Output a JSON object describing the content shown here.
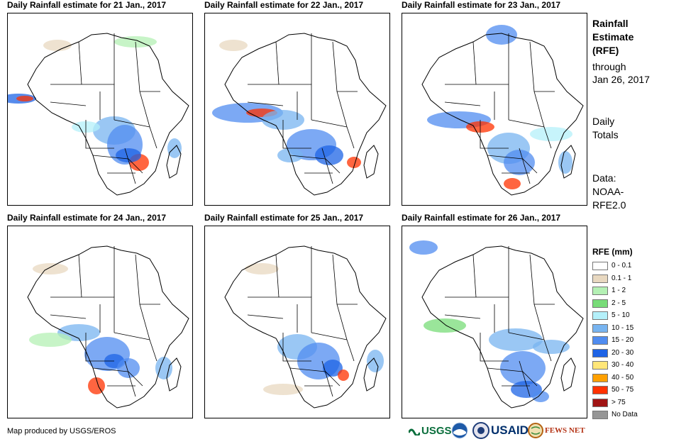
{
  "panels": [
    {
      "title": "Daily Rainfall estimate for 21 Jan., 2017"
    },
    {
      "title": "Daily Rainfall estimate for 22 Jan., 2017"
    },
    {
      "title": "Daily Rainfall estimate for 23 Jan., 2017"
    },
    {
      "title": "Daily Rainfall estimate for 24 Jan., 2017"
    },
    {
      "title": "Daily Rainfall estimate for 25 Jan., 2017"
    },
    {
      "title": "Daily Rainfall estimate for 26 Jan., 2017"
    }
  ],
  "side": {
    "title_line1": "Rainfall",
    "title_line2": "Estimate",
    "title_line3": "(RFE)",
    "through": "through",
    "date": "Jan 26, 2017",
    "daily_line1": "Daily",
    "daily_line2": "Totals",
    "data_line1": "Data:",
    "data_line2": "NOAA-",
    "data_line3": "RFE2.0"
  },
  "legend": {
    "title": "RFE (mm)",
    "items": [
      {
        "label": "0 - 0.1",
        "color": "#ffffff"
      },
      {
        "label": "0.1 - 1",
        "color": "#e8d8c0"
      },
      {
        "label": "1 - 2",
        "color": "#b4f0b4"
      },
      {
        "label": "2 - 5",
        "color": "#78dc78"
      },
      {
        "label": "5 - 10",
        "color": "#b4f0fa"
      },
      {
        "label": "10 - 15",
        "color": "#78b4f0"
      },
      {
        "label": "15 - 20",
        "color": "#508cf0"
      },
      {
        "label": "20 - 30",
        "color": "#1e64e6"
      },
      {
        "label": "30 - 40",
        "color": "#ffe678"
      },
      {
        "label": "40 - 50",
        "color": "#ffa000"
      },
      {
        "label": "50 - 75",
        "color": "#ff3200"
      },
      {
        "label": "> 75",
        "color": "#a01414"
      },
      {
        "label": "No Data",
        "color": "#969696"
      }
    ]
  },
  "footer": {
    "credit": "Map produced by USGS/EROS",
    "logo_usgs": "USGS",
    "logo_usaid": "USAID",
    "logo_fewsnet": "FEWS NET"
  }
}
